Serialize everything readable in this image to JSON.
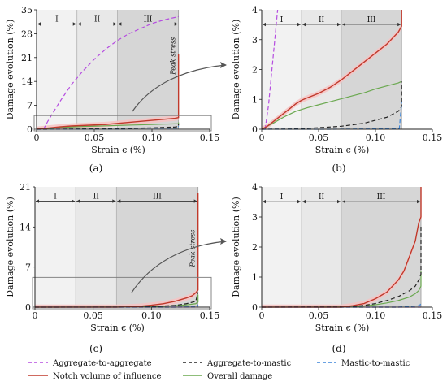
{
  "colors": {
    "aggregate_to_aggregate": "#b54ce0",
    "aggregate_to_mastic": "#222222",
    "mastic_to_mastic": "#3a84d8",
    "notch_volume": "#c0392b",
    "notch_band": "#f7c3c3",
    "overall": "#6aa84f"
  },
  "legend": [
    {
      "key": "aggregate_to_aggregate",
      "label": "Aggregate-to-aggregate",
      "dash": "4,3"
    },
    {
      "key": "aggregate_to_mastic",
      "label": "Aggregate-to-mastic",
      "dash": "4,3"
    },
    {
      "key": "mastic_to_mastic",
      "label": "Mastic-to-mastic",
      "dash": "4,3"
    },
    {
      "key": "notch_volume",
      "label": "Notch volume of influence",
      "dash": ""
    },
    {
      "key": "overall",
      "label": "Overall damage",
      "dash": ""
    }
  ],
  "chart_data": [
    {
      "panel_label": "(a)",
      "type": "line",
      "xlabel": "Strain ϵ (%)",
      "ylabel": "Damage evolution (%)",
      "xlim": [
        0,
        0.15
      ],
      "ylim": [
        0,
        35
      ],
      "xticks": [
        0,
        0.05,
        0.1,
        0.15
      ],
      "xtick_labels": [
        "0",
        "0.05",
        "0.10",
        "0.15"
      ],
      "yticks": [
        0,
        7,
        14,
        21,
        28,
        35
      ],
      "ytick_labels": [
        "0",
        "7",
        "14",
        "21",
        "28",
        "35"
      ],
      "phases": [
        {
          "label": "I",
          "from": 0,
          "to": 0.035
        },
        {
          "label": "II",
          "from": 0.035,
          "to": 0.07
        },
        {
          "label": "III",
          "from": 0.07,
          "to": 0.123
        }
      ],
      "phase_label_y": 32.5,
      "annotation": {
        "text": "Peak stress",
        "x": 0.12,
        "y": 16
      },
      "zoom_box": {
        "x": [
          0.0,
          0.15
        ],
        "y": [
          0,
          4
        ]
      },
      "series": [
        {
          "key": "aggregate_to_aggregate",
          "x": [
            0.006,
            0.01,
            0.02,
            0.03,
            0.04,
            0.05,
            0.06,
            0.07,
            0.08,
            0.09,
            0.1,
            0.11,
            0.123
          ],
          "y": [
            0,
            2.5,
            8,
            13,
            17,
            20.5,
            23.5,
            26,
            28,
            29.5,
            31,
            32,
            33
          ]
        },
        {
          "key": "aggregate_to_mastic",
          "x": [
            0,
            0.02,
            0.04,
            0.06,
            0.08,
            0.1,
            0.12,
            0.123,
            0.123
          ],
          "y": [
            0,
            0.02,
            0.08,
            0.15,
            0.25,
            0.4,
            0.65,
            0.8,
            1.6
          ]
        },
        {
          "key": "mastic_to_mastic",
          "x": [
            0,
            0.06,
            0.1,
            0.122,
            0.123
          ],
          "y": [
            0,
            0,
            0.02,
            0.05,
            0.9
          ]
        },
        {
          "key": "notch_volume",
          "x": [
            0,
            0.01,
            0.02,
            0.03,
            0.04,
            0.05,
            0.06,
            0.07,
            0.08,
            0.09,
            0.1,
            0.11,
            0.12,
            0.123,
            0.123
          ],
          "y": [
            0,
            0.35,
            0.7,
            0.95,
            1.1,
            1.25,
            1.4,
            1.7,
            2.0,
            2.3,
            2.6,
            2.9,
            3.2,
            3.4,
            22
          ]
        },
        {
          "key": "overall",
          "x": [
            0,
            0.01,
            0.02,
            0.03,
            0.04,
            0.05,
            0.06,
            0.07,
            0.08,
            0.09,
            0.1,
            0.11,
            0.12,
            0.123,
            0.123
          ],
          "y": [
            0,
            0.2,
            0.45,
            0.65,
            0.8,
            0.9,
            1.0,
            1.1,
            1.2,
            1.3,
            1.4,
            1.5,
            1.58,
            1.6,
            2.0
          ]
        }
      ]
    },
    {
      "panel_label": "(b)",
      "type": "line",
      "xlabel": "Strain ϵ (%)",
      "ylabel": "Damage evolution (%)",
      "xlim": [
        0,
        0.15
      ],
      "ylim": [
        0,
        4
      ],
      "xticks": [
        0,
        0.05,
        0.1,
        0.15
      ],
      "xtick_labels": [
        "0",
        "0.05",
        "0.10",
        "0.15"
      ],
      "yticks": [
        0,
        1,
        2,
        3,
        4
      ],
      "ytick_labels": [
        "0",
        "1",
        "2",
        "3",
        "4"
      ],
      "phases": [
        {
          "label": "I",
          "from": 0,
          "to": 0.035
        },
        {
          "label": "II",
          "from": 0.035,
          "to": 0.07
        },
        {
          "label": "III",
          "from": 0.07,
          "to": 0.123
        }
      ],
      "phase_label_y": 3.7,
      "series": [
        {
          "key": "aggregate_to_aggregate",
          "x": [
            0.003,
            0.006,
            0.009,
            0.012,
            0.014
          ],
          "y": [
            0,
            0.8,
            2.0,
            3.2,
            4.0
          ]
        },
        {
          "key": "aggregate_to_mastic",
          "x": [
            0,
            0.03,
            0.05,
            0.07,
            0.08,
            0.09,
            0.1,
            0.11,
            0.12,
            0.123,
            0.123
          ],
          "y": [
            0,
            0.01,
            0.05,
            0.1,
            0.15,
            0.2,
            0.3,
            0.4,
            0.6,
            0.75,
            1.6
          ]
        },
        {
          "key": "mastic_to_mastic",
          "x": [
            0,
            0.06,
            0.1,
            0.121,
            0.123
          ],
          "y": [
            0,
            0,
            0.01,
            0.03,
            0.9
          ]
        },
        {
          "key": "notch_volume",
          "x": [
            0,
            0.005,
            0.01,
            0.015,
            0.02,
            0.025,
            0.03,
            0.035,
            0.04,
            0.05,
            0.06,
            0.07,
            0.08,
            0.09,
            0.1,
            0.11,
            0.12,
            0.123,
            0.123
          ],
          "y": [
            0,
            0.1,
            0.25,
            0.4,
            0.55,
            0.7,
            0.85,
            0.97,
            1.05,
            1.2,
            1.4,
            1.65,
            1.95,
            2.25,
            2.55,
            2.85,
            3.25,
            3.45,
            4.0
          ]
        },
        {
          "key": "overall",
          "x": [
            0,
            0.01,
            0.02,
            0.03,
            0.04,
            0.05,
            0.06,
            0.07,
            0.08,
            0.09,
            0.1,
            0.11,
            0.12,
            0.123,
            0.123
          ],
          "y": [
            0,
            0.2,
            0.42,
            0.6,
            0.72,
            0.82,
            0.92,
            1.02,
            1.12,
            1.22,
            1.35,
            1.45,
            1.55,
            1.6,
            1.6
          ]
        }
      ]
    },
    {
      "panel_label": "(c)",
      "type": "line",
      "xlabel": "Strain ϵ (%)",
      "ylabel": "Damage evolution (%)",
      "xlim": [
        0,
        0.15
      ],
      "ylim": [
        0,
        21
      ],
      "xticks": [
        0,
        0.05,
        0.1,
        0.15
      ],
      "xtick_labels": [
        "0",
        "0.05",
        "0.10",
        "0.15"
      ],
      "yticks": [
        0,
        7,
        14,
        21
      ],
      "ytick_labels": [
        "0",
        "7",
        "14",
        "21"
      ],
      "phases": [
        {
          "label": "I",
          "from": 0,
          "to": 0.035
        },
        {
          "label": "II",
          "from": 0.035,
          "to": 0.07
        },
        {
          "label": "III",
          "from": 0.07,
          "to": 0.14
        }
      ],
      "phase_label_y": 19.5,
      "annotation": {
        "text": "Peak stress",
        "x": 0.137,
        "y": 7
      },
      "zoom_box": {
        "x": [
          0.0,
          0.15
        ],
        "y": [
          0,
          5.2
        ]
      },
      "series": [
        {
          "key": "aggregate_to_aggregate",
          "x": [
            0,
            0.14
          ],
          "y": [
            0,
            0
          ]
        },
        {
          "key": "aggregate_to_mastic",
          "x": [
            0,
            0.08,
            0.1,
            0.12,
            0.13,
            0.138,
            0.14
          ],
          "y": [
            0,
            0.02,
            0.1,
            0.3,
            0.6,
            1.0,
            2.6
          ]
        },
        {
          "key": "mastic_to_mastic",
          "x": [
            0,
            0.12,
            0.139,
            0.14
          ],
          "y": [
            0,
            0,
            0.05,
            0.4
          ]
        },
        {
          "key": "notch_volume",
          "x": [
            0,
            0.07,
            0.08,
            0.09,
            0.1,
            0.11,
            0.12,
            0.13,
            0.135,
            0.138,
            0.14,
            0.14
          ],
          "y": [
            0,
            0,
            0.05,
            0.15,
            0.35,
            0.6,
            1.0,
            1.6,
            2.0,
            2.5,
            3.0,
            20
          ]
        },
        {
          "key": "overall",
          "x": [
            0,
            0.08,
            0.1,
            0.12,
            0.13,
            0.138,
            0.14,
            0.14
          ],
          "y": [
            0,
            0.02,
            0.1,
            0.25,
            0.4,
            0.6,
            0.9,
            2.2
          ]
        }
      ]
    },
    {
      "panel_label": "(d)",
      "type": "line",
      "xlabel": "Strain ϵ (%)",
      "ylabel": "Damage evolution (%)",
      "xlim": [
        0,
        0.15
      ],
      "ylim": [
        0,
        4
      ],
      "xticks": [
        0,
        0.05,
        0.1,
        0.15
      ],
      "xtick_labels": [
        "0",
        "0.05",
        "0.10",
        "0.15"
      ],
      "yticks": [
        0,
        1,
        2,
        3,
        4
      ],
      "ytick_labels": [
        "0",
        "1",
        "2",
        "3",
        "4"
      ],
      "phases": [
        {
          "label": "I",
          "from": 0,
          "to": 0.035
        },
        {
          "label": "II",
          "from": 0.035,
          "to": 0.07
        },
        {
          "label": "III",
          "from": 0.07,
          "to": 0.14
        }
      ],
      "phase_label_y": 3.7,
      "series": [
        {
          "key": "aggregate_to_aggregate",
          "x": [
            0,
            0.14
          ],
          "y": [
            0,
            0
          ]
        },
        {
          "key": "aggregate_to_mastic",
          "x": [
            0,
            0.08,
            0.09,
            0.1,
            0.11,
            0.12,
            0.13,
            0.135,
            0.138,
            0.14,
            0.14
          ],
          "y": [
            0,
            0.02,
            0.06,
            0.12,
            0.22,
            0.35,
            0.55,
            0.7,
            0.9,
            1.1,
            2.7
          ]
        },
        {
          "key": "mastic_to_mastic",
          "x": [
            0,
            0.12,
            0.139,
            0.14
          ],
          "y": [
            0,
            0,
            0.05,
            0.15
          ]
        },
        {
          "key": "notch_volume",
          "x": [
            0,
            0.07,
            0.08,
            0.09,
            0.1,
            0.11,
            0.12,
            0.125,
            0.13,
            0.135,
            0.138,
            0.14,
            0.14
          ],
          "y": [
            0,
            0,
            0.05,
            0.12,
            0.28,
            0.5,
            0.9,
            1.2,
            1.7,
            2.2,
            2.8,
            3.0,
            4.0
          ]
        },
        {
          "key": "overall",
          "x": [
            0,
            0.08,
            0.09,
            0.1,
            0.11,
            0.12,
            0.13,
            0.135,
            0.138,
            0.14,
            0.14
          ],
          "y": [
            0,
            0.01,
            0.04,
            0.08,
            0.14,
            0.22,
            0.34,
            0.45,
            0.55,
            0.7,
            1.2
          ]
        }
      ]
    }
  ]
}
